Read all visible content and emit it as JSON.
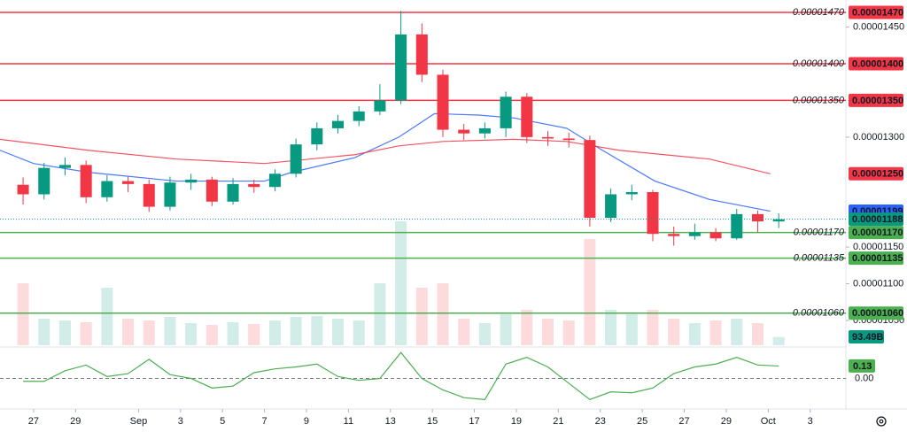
{
  "chart_data": {
    "type": "candlestick",
    "xlim": [
      -1.6,
      38.7
    ],
    "xticks": [
      {
        "value": 0,
        "label": "27"
      },
      {
        "value": 2,
        "label": "29"
      },
      {
        "value": 5,
        "label": "Sep"
      },
      {
        "value": 7,
        "label": "3"
      },
      {
        "value": 9,
        "label": "5"
      },
      {
        "value": 11,
        "label": "7"
      },
      {
        "value": 13,
        "label": "9"
      },
      {
        "value": 15,
        "label": "11"
      },
      {
        "value": 17,
        "label": "13"
      },
      {
        "value": 19,
        "label": "15"
      },
      {
        "value": 21,
        "label": "17"
      },
      {
        "value": 23,
        "label": "19"
      },
      {
        "value": 25,
        "label": "21"
      },
      {
        "value": 27,
        "label": "23"
      },
      {
        "value": 29,
        "label": "25"
      },
      {
        "value": 31,
        "label": "27"
      },
      {
        "value": 33,
        "label": "29"
      },
      {
        "value": 35,
        "label": "Oct"
      },
      {
        "value": 37,
        "label": "3"
      }
    ],
    "ylim": [
      1.0162e-05,
      1.4869e-05
    ],
    "yticks": [
      {
        "value": 1.45e-05,
        "label": "0.00001450"
      },
      {
        "value": 1.3e-05,
        "label": "0.00001300"
      },
      {
        "value": 1.15e-05,
        "label": "0.00001150"
      },
      {
        "value": 1.1e-05,
        "label": "0.00001100"
      },
      {
        "value": 1.05e-05,
        "label": "0.00001050"
      }
    ],
    "up_color": "#089981",
    "down_color": "#f23645",
    "x": [
      -1,
      0,
      1,
      2,
      3,
      4,
      5,
      6,
      7,
      8,
      9,
      10,
      11,
      12,
      13,
      14,
      15,
      16,
      17,
      18,
      19,
      20,
      21,
      22,
      23,
      24,
      25,
      26,
      27,
      28,
      29,
      30,
      31,
      32,
      33,
      34,
      35
    ],
    "open": [
      1.235e-05,
      1.222e-05,
      1.258e-05,
      1.262e-05,
      1.218e-05,
      1.24e-05,
      1.236e-05,
      1.205e-05,
      1.238e-05,
      1.242e-05,
      1.212e-05,
      1.236e-05,
      1.232e-05,
      1.25e-05,
      1.29e-05,
      1.312e-05,
      1.322e-05,
      1.335e-05,
      1.35e-05,
      1.44e-05,
      1.385e-05,
      1.31e-05,
      1.305e-05,
      1.312e-05,
      1.355e-05,
      1.3e-05,
      1.298e-05,
      1.296e-05,
      1.19e-05,
      1.222e-05,
      1.225e-05,
      1.168e-05,
      1.165e-05,
      1.17e-05,
      1.162e-05,
      1.195e-05,
      1.185e-05
    ],
    "high": [
      1.245e-05,
      1.265e-05,
      1.272e-05,
      1.268e-05,
      1.248e-05,
      1.246e-05,
      1.242e-05,
      1.246e-05,
      1.25e-05,
      1.246e-05,
      1.244e-05,
      1.242e-05,
      1.256e-05,
      1.298e-05,
      1.32e-05,
      1.33e-05,
      1.342e-05,
      1.372e-05,
      1.472e-05,
      1.455e-05,
      1.392e-05,
      1.318e-05,
      1.32e-05,
      1.362e-05,
      1.36e-05,
      1.308e-05,
      1.306e-05,
      1.302e-05,
      1.23e-05,
      1.235e-05,
      1.228e-05,
      1.178e-05,
      1.182e-05,
      1.176e-05,
      1.202e-05,
      1.2e-05,
      1.196e-05
    ],
    "low": [
      1.208e-05,
      1.215e-05,
      1.248e-05,
      1.21e-05,
      1.212e-05,
      1.225e-05,
      1.198e-05,
      1.2e-05,
      1.228e-05,
      1.206e-05,
      1.208e-05,
      1.224e-05,
      1.226e-05,
      1.245e-05,
      1.282e-05,
      1.305e-05,
      1.315e-05,
      1.33e-05,
      1.345e-05,
      1.375e-05,
      1.3e-05,
      1.296e-05,
      1.298e-05,
      1.3e-05,
      1.292e-05,
      1.288e-05,
      1.286e-05,
      1.178e-05,
      1.184e-05,
      1.214e-05,
      1.158e-05,
      1.152e-05,
      1.16e-05,
      1.158e-05,
      1.16e-05,
      1.17e-05,
      1.176e-05
    ],
    "close": [
      1.222e-05,
      1.258e-05,
      1.262e-05,
      1.218e-05,
      1.24e-05,
      1.236e-05,
      1.205e-05,
      1.238e-05,
      1.242e-05,
      1.212e-05,
      1.236e-05,
      1.232e-05,
      1.25e-05,
      1.29e-05,
      1.312e-05,
      1.322e-05,
      1.335e-05,
      1.35e-05,
      1.44e-05,
      1.385e-05,
      1.31e-05,
      1.305e-05,
      1.312e-05,
      1.355e-05,
      1.3e-05,
      1.298e-05,
      1.296e-05,
      1.19e-05,
      1.222e-05,
      1.225e-05,
      1.168e-05,
      1.165e-05,
      1.17e-05,
      1.162e-05,
      1.195e-05,
      1.185e-05,
      1.188e-05
    ],
    "moving_averages": [
      {
        "color": "#2962ff",
        "x": [
          -1.6,
          0,
          2.6,
          6.8,
          11,
          12.3,
          15.3,
          17.4,
          19.1,
          21.2,
          22.9,
          25.4,
          27.1,
          29.6,
          32.2,
          35.1
        ],
        "values": [
          1.282e-05,
          1.264e-05,
          1.252e-05,
          1.24e-05,
          1.24e-05,
          1.252e-05,
          1.272e-05,
          1.3e-05,
          1.332e-05,
          1.33e-05,
          1.326e-05,
          1.312e-05,
          1.282e-05,
          1.24e-05,
          1.215e-05,
          1.199e-05
        ],
        "end_label": "0.00001199"
      },
      {
        "color": "#f23645",
        "x": [
          -1.6,
          2.6,
          6.8,
          11,
          15.3,
          17.4,
          19.5,
          22.9,
          25.4,
          27.9,
          32.2,
          35.1
        ],
        "values": [
          1.297e-05,
          1.282e-05,
          1.27e-05,
          1.264e-05,
          1.276e-05,
          1.288e-05,
          1.294e-05,
          1.297e-05,
          1.294e-05,
          1.282e-05,
          1.27e-05,
          1.25e-05
        ],
        "end_label": "0.00001250"
      }
    ],
    "levels": [
      {
        "value": 1.47e-05,
        "label": "0.00001470",
        "color": "#f23645"
      },
      {
        "value": 1.4e-05,
        "label": "0.00001400",
        "color": "#f23645"
      },
      {
        "value": 1.35e-05,
        "label": "0.00001350",
        "color": "#f23645"
      },
      {
        "value": 1.17e-05,
        "label": "0.00001170",
        "color": "#4caf50"
      },
      {
        "value": 1.135e-05,
        "label": "0.00001135",
        "color": "#4caf50"
      },
      {
        "value": 1.06e-05,
        "label": "0.00001060",
        "color": "#4caf50"
      }
    ],
    "last_price": {
      "value": 1.188e-05,
      "label": "0.00001188",
      "color": "#089981"
    },
    "volume": {
      "vlim": [
        0,
        1500
      ],
      "values": [
        700,
        300,
        280,
        260,
        650,
        300,
        280,
        320,
        250,
        230,
        260,
        240,
        280,
        320,
        330,
        300,
        280,
        700,
        1400,
        650,
        700,
        300,
        250,
        350,
        400,
        300,
        280,
        1200,
        400,
        350,
        400,
        300,
        250,
        280,
        300,
        250,
        93.49
      ],
      "last_label": "93.49B"
    },
    "oscillator": {
      "color": "#4caf50",
      "olim": [
        -0.3,
        0.3
      ],
      "values": [
        -0.03,
        -0.03,
        0.08,
        0.14,
        0.02,
        0.05,
        0.2,
        0.04,
        0,
        -0.1,
        -0.08,
        0.06,
        0.1,
        0.12,
        0.15,
        0.02,
        -0.02,
        0,
        0.27,
        0,
        -0.12,
        -0.2,
        -0.22,
        0.15,
        0.22,
        0.12,
        -0.05,
        -0.22,
        -0.14,
        -0.15,
        -0.1,
        0.05,
        0.12,
        0.15,
        0.22,
        0.14,
        0.13
      ],
      "last_label": "0.13",
      "zero": 0,
      "zero_label": "0.00"
    }
  }
}
